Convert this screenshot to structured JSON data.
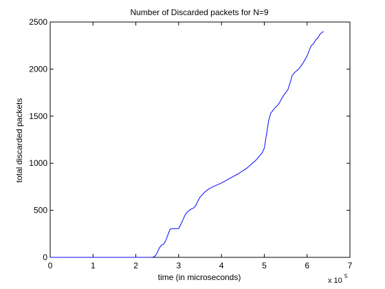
{
  "chart_data": {
    "type": "line",
    "title": "Number of Discarded packets for N=9",
    "xlabel": "time (in microseconds)",
    "ylabel": "total discarded packets",
    "x_multiplier": {
      "base": "x 10",
      "exponent": "5"
    },
    "xlim": [
      0,
      7
    ],
    "ylim": [
      0,
      2500
    ],
    "x_ticks": [
      0,
      1,
      2,
      3,
      4,
      5,
      6,
      7
    ],
    "y_ticks": [
      0,
      500,
      1000,
      1500,
      2000,
      2500
    ],
    "grid": false,
    "line_color": "#0000ff",
    "series": [
      {
        "x": [
          0.0,
          2.38,
          2.42,
          2.46,
          2.5,
          2.55,
          2.6,
          2.65,
          2.7,
          2.75,
          2.8,
          2.85,
          2.9,
          2.95,
          3.0,
          3.05,
          3.1,
          3.15,
          3.2,
          3.25,
          3.3,
          3.35,
          3.4,
          3.45,
          3.5,
          3.6,
          3.7,
          3.8,
          3.9,
          4.0,
          4.2,
          4.4,
          4.6,
          4.8,
          4.95,
          5.0,
          5.05,
          5.1,
          5.15,
          5.2,
          5.25,
          5.3,
          5.35,
          5.4,
          5.45,
          5.5,
          5.55,
          5.6,
          5.65,
          5.7,
          5.8,
          5.9,
          5.95,
          6.0,
          6.05,
          6.1,
          6.15,
          6.2,
          6.25,
          6.3,
          6.35,
          6.38
        ],
        "y": [
          0,
          0,
          5,
          20,
          50,
          100,
          130,
          140,
          180,
          240,
          300,
          305,
          305,
          305,
          305,
          350,
          400,
          450,
          480,
          500,
          515,
          525,
          550,
          600,
          640,
          690,
          725,
          750,
          770,
          790,
          840,
          890,
          950,
          1030,
          1110,
          1160,
          1300,
          1450,
          1530,
          1560,
          1590,
          1610,
          1640,
          1680,
          1720,
          1750,
          1780,
          1850,
          1930,
          1960,
          2000,
          2060,
          2100,
          2140,
          2200,
          2250,
          2270,
          2310,
          2330,
          2370,
          2390,
          2400
        ]
      }
    ]
  }
}
